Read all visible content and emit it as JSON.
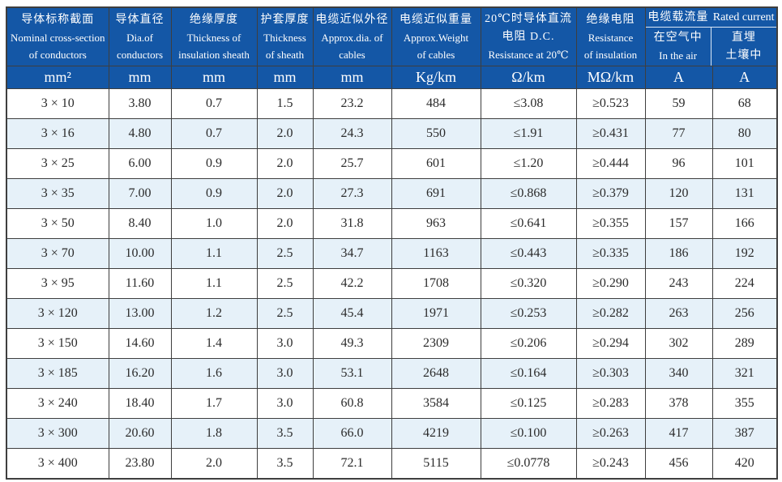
{
  "table": {
    "header": {
      "cols": [
        {
          "lines": [
            "导体标称截面",
            "Nominal cross-section",
            "of conductors"
          ],
          "unit": "mm²"
        },
        {
          "lines": [
            "导体直径",
            "Dia.of",
            "conductors"
          ],
          "unit": "mm"
        },
        {
          "lines": [
            "绝缘厚度",
            "Thickness of",
            "insulation sheath"
          ],
          "unit": "mm"
        },
        {
          "lines": [
            "护套厚度",
            "Thickness",
            "of sheath"
          ],
          "unit": "mm"
        },
        {
          "lines": [
            "电缆近似外径",
            "Approx.dia. of",
            "cables"
          ],
          "unit": "mm"
        },
        {
          "lines": [
            "电缆近似重量",
            "Approx.Weight",
            "of cables"
          ],
          "unit": "Kg/km"
        },
        {
          "lines": [
            "20℃时导体直流",
            "电阻 D.C.",
            "Resistance at 20℃"
          ],
          "unit": "Ω/km"
        },
        {
          "lines": [
            "绝缘电阻",
            "Resistance",
            "of insulation"
          ],
          "unit": "MΩ/km"
        }
      ],
      "rated_current": {
        "title_zh": "电缆载流量",
        "title_en": "Rated current",
        "sub": [
          {
            "line1": "在空气中",
            "line2": "In the air",
            "unit": "A"
          },
          {
            "line1": "直埋",
            "line2": "土壤中",
            "unit": "A"
          }
        ]
      }
    },
    "rows": [
      [
        "3 × 10",
        "3.80",
        "0.7",
        "1.5",
        "23.2",
        "484",
        "≤3.08",
        "≥0.523",
        "59",
        "68"
      ],
      [
        "3 × 16",
        "4.80",
        "0.7",
        "2.0",
        "24.3",
        "550",
        "≤1.91",
        "≥0.431",
        "77",
        "80"
      ],
      [
        "3 × 25",
        "6.00",
        "0.9",
        "2.0",
        "25.7",
        "601",
        "≤1.20",
        "≥0.444",
        "96",
        "101"
      ],
      [
        "3 × 35",
        "7.00",
        "0.9",
        "2.0",
        "27.3",
        "691",
        "≤0.868",
        "≥0.379",
        "120",
        "131"
      ],
      [
        "3 × 50",
        "8.40",
        "1.0",
        "2.0",
        "31.8",
        "963",
        "≤0.641",
        "≥0.355",
        "157",
        "166"
      ],
      [
        "3 × 70",
        "10.00",
        "1.1",
        "2.5",
        "34.7",
        "1163",
        "≤0.443",
        "≥0.335",
        "186",
        "192"
      ],
      [
        "3 × 95",
        "11.60",
        "1.1",
        "2.5",
        "42.2",
        "1708",
        "≤0.320",
        "≥0.290",
        "243",
        "224"
      ],
      [
        "3 × 120",
        "13.00",
        "1.2",
        "2.5",
        "45.4",
        "1971",
        "≤0.253",
        "≥0.282",
        "263",
        "256"
      ],
      [
        "3 × 150",
        "14.60",
        "1.4",
        "3.0",
        "49.3",
        "2309",
        "≤0.206",
        "≥0.294",
        "302",
        "289"
      ],
      [
        "3 × 185",
        "16.20",
        "1.6",
        "3.0",
        "53.1",
        "2648",
        "≤0.164",
        "≥0.303",
        "340",
        "321"
      ],
      [
        "3 × 240",
        "18.40",
        "1.7",
        "3.0",
        "60.8",
        "3584",
        "≤0.125",
        "≥0.283",
        "378",
        "355"
      ],
      [
        "3 × 300",
        "20.60",
        "1.8",
        "3.5",
        "66.0",
        "4219",
        "≤0.100",
        "≥0.263",
        "417",
        "387"
      ],
      [
        "3 × 400",
        "23.80",
        "2.0",
        "3.5",
        "72.1",
        "5115",
        "≤0.0778",
        "≥0.243",
        "456",
        "420"
      ]
    ]
  },
  "colors": {
    "header_bg": "#1457a6",
    "header_text": "#ffffff",
    "alt_row_bg": "#e6f1f9",
    "row_bg": "#ffffff",
    "grid_line": "#3e3e3e",
    "data_text": "#2b2b2b",
    "inner_divider": "#dce8f5"
  }
}
